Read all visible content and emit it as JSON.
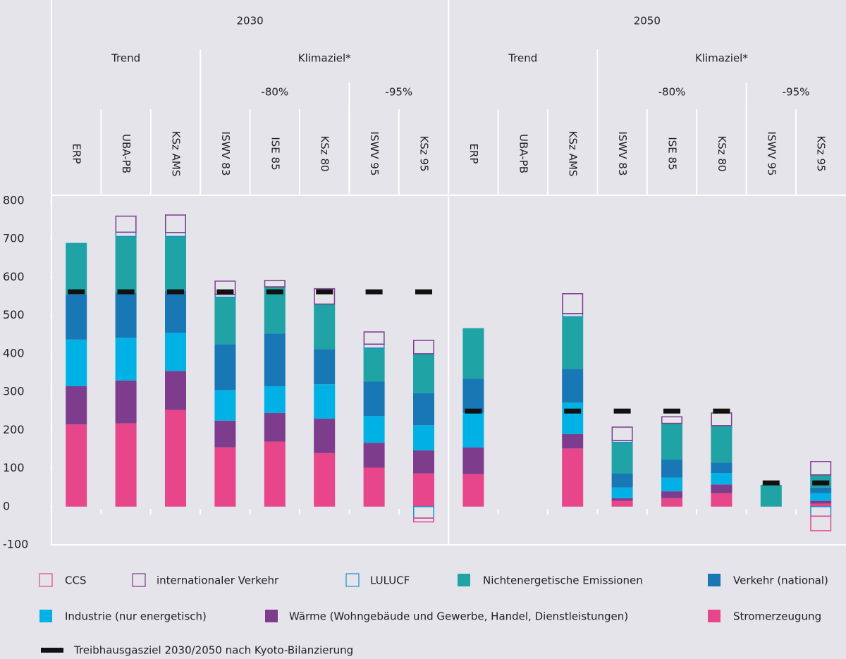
{
  "chart_data": {
    "type": "stacked-bar",
    "year_labels": [
      "2030",
      "2050"
    ],
    "scenario_labels": [
      "Trend",
      "Klimaziel*",
      "Trend",
      "Klimaziel*"
    ],
    "target_labels": [
      "-80%",
      "-95%",
      "-80%",
      "-95%"
    ],
    "categories": [
      "ERP",
      "UBA-PB",
      "KSz AMS",
      "ISWV 83",
      "ISE 85",
      "KSz 80",
      "ISWV 95",
      "KSz 95",
      "ERP",
      "UBA-PB",
      "KSz AMS",
      "ISWV 83",
      "ISE 85",
      "KSz 80",
      "ISWV 95",
      "KSz 95"
    ],
    "ylim": [
      -100,
      800
    ],
    "yticks": [
      -100,
      0,
      100,
      200,
      300,
      400,
      500,
      600,
      700,
      800
    ],
    "series": [
      {
        "name": "CCS",
        "color": "#e8468a",
        "outline": true,
        "values": [
          0,
          0,
          0,
          0,
          0,
          0,
          0,
          -10,
          0,
          null,
          0,
          0,
          0,
          0,
          0,
          -38
        ]
      },
      {
        "name": "internationaler Verkehr",
        "color": "#7d3c8c",
        "outline": true,
        "values": [
          0,
          42,
          46,
          35,
          17,
          40,
          32,
          35,
          0,
          null,
          52,
          35,
          17,
          33,
          0,
          35
        ]
      },
      {
        "name": "LULUCF",
        "color": "#1e8fc8",
        "outline": true,
        "values": [
          0,
          11,
          10,
          7,
          0,
          0,
          10,
          -30,
          0,
          null,
          8,
          5,
          0,
          0,
          0,
          -25
        ]
      },
      {
        "name": "Nichtenergetische Emissionen",
        "color": "#1fa3a4",
        "outline": false,
        "values": [
          135,
          147,
          142,
          123,
          122,
          118,
          88,
          103,
          132,
          null,
          137,
          81,
          95,
          97,
          57,
          33
        ]
      },
      {
        "name": "Verkehr (national)",
        "color": "#1877b5",
        "outline": false,
        "values": [
          118,
          118,
          110,
          120,
          138,
          92,
          90,
          84,
          90,
          null,
          88,
          37,
          47,
          27,
          0,
          15
        ]
      },
      {
        "name": "Industrie (nur energetisch)",
        "color": "#00b1e5",
        "outline": false,
        "values": [
          122,
          112,
          100,
          80,
          70,
          90,
          70,
          66,
          90,
          null,
          82,
          28,
          36,
          30,
          0,
          20
        ]
      },
      {
        "name": "Wärme (Wohngebäude und Gewerbe, Handel, Dienstleistungen)",
        "color": "#7d3c8c",
        "outline": false,
        "values": [
          100,
          112,
          102,
          70,
          75,
          90,
          65,
          60,
          70,
          null,
          38,
          7,
          18,
          23,
          0,
          7
        ]
      },
      {
        "name": "Stromerzeugung",
        "color": "#e8468a",
        "outline": false,
        "values": [
          215,
          218,
          253,
          155,
          170,
          140,
          102,
          87,
          85,
          null,
          152,
          15,
          22,
          35,
          0,
          8
        ]
      }
    ],
    "target": {
      "name": "Treibhausgasziel 2030/2050 nach Kyoto-Bilanzierung",
      "color": "#111111",
      "values": [
        562,
        562,
        562,
        562,
        562,
        562,
        562,
        562,
        250,
        null,
        250,
        250,
        250,
        250,
        62,
        62
      ]
    }
  }
}
